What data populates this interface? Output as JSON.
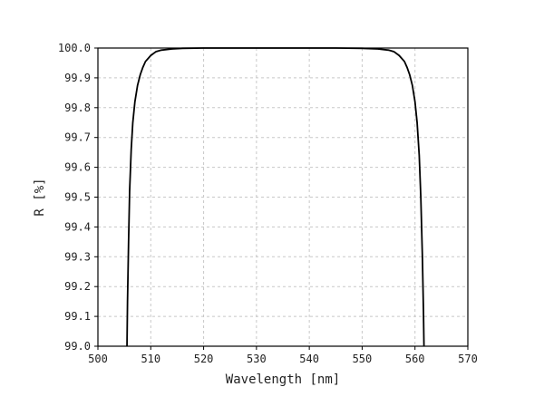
{
  "chart_data": {
    "type": "line",
    "title": "",
    "xlabel": "Wavelength [nm]",
    "ylabel": "R [%]",
    "xlim": [
      500,
      570
    ],
    "ylim": [
      99.0,
      100.0
    ],
    "xticks": [
      "500",
      "510",
      "520",
      "530",
      "540",
      "550",
      "560",
      "570"
    ],
    "yticks": [
      "99.0",
      "99.1",
      "99.2",
      "99.3",
      "99.4",
      "99.5",
      "99.6",
      "99.7",
      "99.8",
      "99.9",
      "100.0"
    ],
    "grid": true,
    "series": [
      {
        "name": "",
        "color": "#000000",
        "x": [
          505.5,
          505.6,
          505.8,
          506.0,
          506.3,
          506.6,
          507.0,
          507.5,
          508.0,
          508.5,
          509.0,
          510.0,
          511.0,
          512.0,
          514.0,
          516.0,
          520.0,
          525.0,
          530.0,
          535.0,
          540.0,
          545.0,
          550.0,
          553.0,
          555.0,
          556.0,
          557.0,
          558.0,
          558.5,
          559.0,
          559.5,
          560.0,
          560.4,
          560.8,
          561.1,
          561.4,
          561.6,
          561.7
        ],
        "y": [
          99.0,
          99.15,
          99.35,
          99.52,
          99.66,
          99.75,
          99.82,
          99.875,
          99.91,
          99.935,
          99.955,
          99.975,
          99.988,
          99.993,
          99.997,
          99.999,
          100.0,
          100.0,
          100.0,
          100.0,
          100.0,
          100.0,
          99.999,
          99.997,
          99.993,
          99.988,
          99.975,
          99.955,
          99.935,
          99.91,
          99.875,
          99.82,
          99.75,
          99.64,
          99.5,
          99.3,
          99.12,
          99.0
        ]
      }
    ]
  }
}
